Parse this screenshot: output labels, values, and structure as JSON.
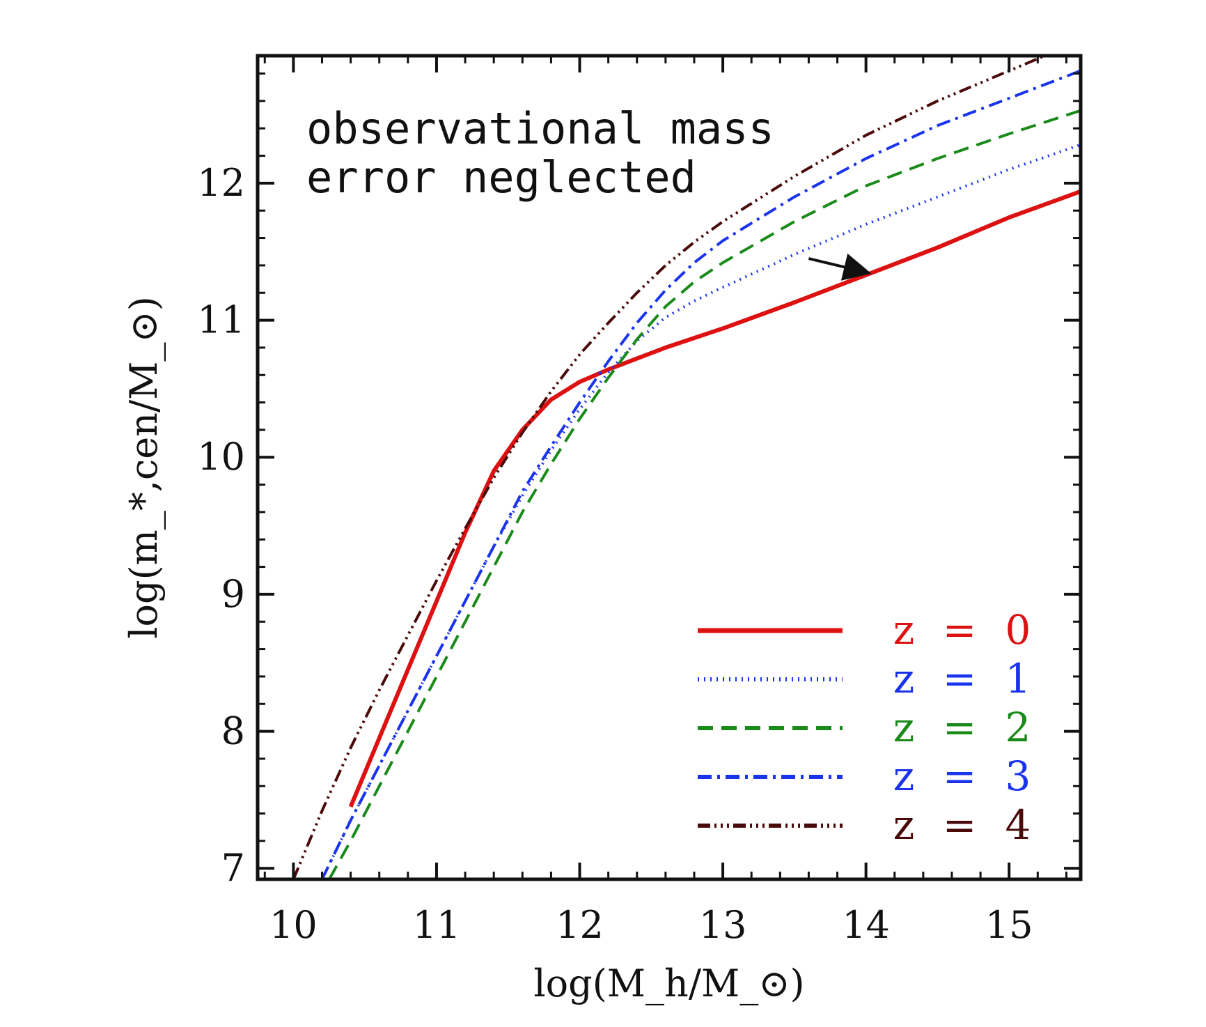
{
  "chart_data": {
    "type": "line",
    "xlabel": "log(M_h/M_⊙)",
    "ylabel": "log(m_*,cen/M_⊙)",
    "xlim": [
      9.75,
      15.5
    ],
    "ylim": [
      6.92,
      12.93
    ],
    "xticks": [
      10,
      11,
      12,
      13,
      14,
      15
    ],
    "yticks": [
      7,
      8,
      9,
      10,
      11,
      12
    ],
    "grid": false,
    "legend_position": "bottom-right",
    "annotation": [
      "observational mass",
      "error neglected"
    ],
    "arrow": {
      "from": [
        13.6,
        11.45
      ],
      "to": [
        14.0,
        11.35
      ]
    },
    "series": [
      {
        "name": "z = 0",
        "label": {
          "sym": "z",
          "eq": "=",
          "num": "0"
        },
        "color": "#dd1111",
        "dash": "",
        "x": [
          10.4,
          10.6,
          10.8,
          11.0,
          11.2,
          11.4,
          11.6,
          11.8,
          12.0,
          12.2,
          12.4,
          12.6,
          12.8,
          13.0,
          13.5,
          14.0,
          14.5,
          15.0,
          15.5
        ],
        "y": [
          7.45,
          7.95,
          8.45,
          8.95,
          9.45,
          9.9,
          10.2,
          10.42,
          10.55,
          10.64,
          10.72,
          10.8,
          10.87,
          10.94,
          11.13,
          11.33,
          11.53,
          11.75,
          11.94
        ]
      },
      {
        "name": "z = 1",
        "label": {
          "sym": "z",
          "eq": "=",
          "num": "1"
        },
        "color": "#1a33ee",
        "dash": "2 7",
        "x": [
          10.2,
          10.4,
          10.6,
          10.8,
          11.0,
          11.2,
          11.4,
          11.6,
          11.8,
          12.0,
          12.2,
          12.4,
          12.6,
          12.8,
          13.0,
          13.5,
          14.0,
          14.5,
          15.0,
          15.5
        ],
        "y": [
          6.92,
          7.35,
          7.75,
          8.15,
          8.55,
          8.95,
          9.35,
          9.72,
          10.05,
          10.35,
          10.62,
          10.85,
          11.02,
          11.14,
          11.24,
          11.48,
          11.7,
          11.9,
          12.1,
          12.28
        ]
      },
      {
        "name": "z = 2",
        "label": {
          "sym": "z",
          "eq": "=",
          "num": "2"
        },
        "color": "#1a8a1a",
        "dash": "22 12",
        "x": [
          10.25,
          10.4,
          10.6,
          10.8,
          11.0,
          11.2,
          11.4,
          11.6,
          11.8,
          12.0,
          12.2,
          12.4,
          12.6,
          12.8,
          13.0,
          13.5,
          14.0,
          14.5,
          15.0,
          15.5
        ],
        "y": [
          6.92,
          7.2,
          7.6,
          8.0,
          8.4,
          8.8,
          9.2,
          9.6,
          9.95,
          10.28,
          10.58,
          10.86,
          11.1,
          11.28,
          11.42,
          11.72,
          11.98,
          12.18,
          12.36,
          12.53
        ]
      },
      {
        "name": "z = 3",
        "label": {
          "sym": "z",
          "eq": "=",
          "num": "3"
        },
        "color": "#1a33ee",
        "dash": "20 8 4 8",
        "x": [
          10.2,
          10.4,
          10.6,
          10.8,
          11.0,
          11.2,
          11.4,
          11.6,
          11.8,
          12.0,
          12.2,
          12.4,
          12.6,
          12.8,
          13.0,
          13.5,
          14.0,
          14.5,
          15.0,
          15.5
        ],
        "y": [
          6.92,
          7.35,
          7.75,
          8.15,
          8.55,
          8.95,
          9.35,
          9.75,
          10.08,
          10.4,
          10.7,
          10.98,
          11.22,
          11.42,
          11.58,
          11.9,
          12.18,
          12.42,
          12.62,
          12.82
        ]
      },
      {
        "name": "z = 4",
        "label": {
          "sym": "z",
          "eq": "=",
          "num": "4"
        },
        "color": "#4a0a0a",
        "dash": "18 6 3 6 3 6 3 6",
        "x": [
          10.0,
          10.2,
          10.4,
          10.6,
          10.8,
          11.0,
          11.2,
          11.4,
          11.6,
          11.8,
          12.0,
          12.2,
          12.4,
          12.6,
          12.8,
          13.0,
          13.5,
          14.0,
          14.5,
          15.0,
          15.25
        ],
        "y": [
          6.92,
          7.42,
          7.88,
          8.3,
          8.7,
          9.1,
          9.48,
          9.85,
          10.18,
          10.48,
          10.75,
          10.98,
          11.2,
          11.4,
          11.57,
          11.72,
          12.05,
          12.35,
          12.6,
          12.82,
          12.93
        ]
      }
    ]
  }
}
